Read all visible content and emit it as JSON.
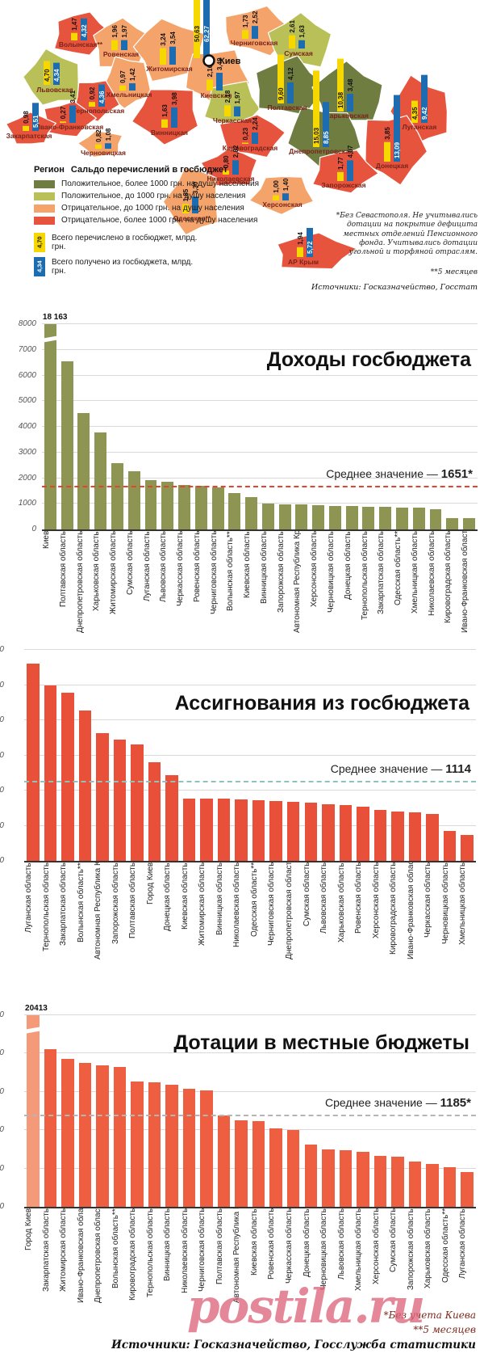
{
  "map": {
    "legend": {
      "title_region": "Регион",
      "title": "Сальдо перечислений в госбюджет",
      "items": [
        {
          "color": "#6f7d41",
          "label": "Положительное, более 1000 грн. на душу населения"
        },
        {
          "color": "#b9c058",
          "label": "Положительное, до 1000 грн. на душу населения"
        },
        {
          "color": "#f4a46b",
          "label": "Отрицательное, до 1000 грн. на душу населения"
        },
        {
          "color": "#e7543e",
          "label": "Отрицательное, более 1000 грн. на душу населения"
        }
      ],
      "bar_items": [
        {
          "color": "#f6d800",
          "text_color": "#111111",
          "value": "4,70",
          "label": "Всего перечислено в госбюджет, млрд. грн."
        },
        {
          "color": "#1d6cb0",
          "text_color": "#ffffff",
          "value": "4,34",
          "label": "Всего получено из госбюджета, млрд. грн."
        }
      ]
    },
    "category_colors": {
      "pos_high": "#6f7d41",
      "pos_low": "#b9c058",
      "neg_low": "#f4a46b",
      "neg_high": "#e7543e"
    },
    "bar_colors": {
      "sent": "#f6d800",
      "received": "#1d6cb0"
    },
    "kyiv_label": "Киев",
    "footnote": "*Без Севастополя. Не учитывались дотации на покрытие дефицита местных отделений Пенсионного фонда. Учитывались дотации угольной и торфяной отраслям.",
    "footnote2": "**5 месяцев",
    "source": "Источники: Госказначейство, Госстат",
    "regions": [
      {
        "name": "Волынская**",
        "category": "neg_high",
        "sent": "1,47",
        "received": "4,32"
      },
      {
        "name": "Ровенская",
        "category": "neg_low",
        "sent": "1,96",
        "received": "1,97"
      },
      {
        "name": "Житомирская",
        "category": "neg_low",
        "sent": "3,24",
        "received": "3,54"
      },
      {
        "name": "Киев",
        "category": "kyiv",
        "sent": "50,63",
        "received": "62,27"
      },
      {
        "name": "Киевская",
        "category": "neg_low",
        "sent": "2,16",
        "received": "3,49"
      },
      {
        "name": "Черниговская",
        "category": "neg_low",
        "sent": "1,73",
        "received": "2,52"
      },
      {
        "name": "Сумская",
        "category": "pos_low",
        "sent": "2,61",
        "received": "1,63"
      },
      {
        "name": "Львовская",
        "category": "pos_low",
        "sent": "4,70",
        "received": "4,34"
      },
      {
        "name": "Хмельницкая",
        "category": "neg_low",
        "sent": "0,97",
        "received": "1,42"
      },
      {
        "name": "Тернопольская",
        "category": "neg_high",
        "sent": "0,92",
        "received": "4,36"
      },
      {
        "name": "Ивано-Франковская",
        "category": "neg_high",
        "sent": "0,27",
        "received": "3,41"
      },
      {
        "name": "Закарпатская",
        "category": "neg_high",
        "sent": "0,98",
        "received": "5,51"
      },
      {
        "name": "Черновицкая",
        "category": "neg_low",
        "sent": "0,82",
        "received": "1,08"
      },
      {
        "name": "Винницкая",
        "category": "neg_high",
        "sent": "1,63",
        "received": "3,98"
      },
      {
        "name": "Черкасская",
        "category": "pos_low",
        "sent": "2,18",
        "received": "1,97"
      },
      {
        "name": "Полтавская",
        "category": "pos_high",
        "sent": "9,60",
        "received": "4,12"
      },
      {
        "name": "Харьковская",
        "category": "pos_high",
        "sent": "10,38",
        "received": "3,48"
      },
      {
        "name": "Луганская",
        "category": "neg_high",
        "sent": "4,35",
        "received": "9,42"
      },
      {
        "name": "Днепропетровская",
        "category": "pos_high",
        "sent": "15,03",
        "received": "8,85"
      },
      {
        "name": "Донецкая",
        "category": "neg_high",
        "sent": "3,85",
        "received": "13,09"
      },
      {
        "name": "Кировоградская",
        "category": "neg_high",
        "sent": "0,23",
        "received": "2,24"
      },
      {
        "name": "Николаевская",
        "category": "neg_high",
        "sent": "0,80",
        "received": "2,82"
      },
      {
        "name": "Одесская**",
        "category": "neg_low",
        "sent": "1,85",
        "received": "3,30"
      },
      {
        "name": "Херсонская",
        "category": "neg_low",
        "sent": "1,00",
        "received": "1,40"
      },
      {
        "name": "Запорожская",
        "category": "neg_high",
        "sent": "1,77",
        "received": "4,07"
      },
      {
        "name": "АР Крым",
        "category": "neg_high",
        "sent": "1,94",
        "received": "5,72"
      }
    ]
  },
  "chart_data": [
    {
      "type": "bar",
      "title": "Доходы госбюджета",
      "bar_color": "#8e9552",
      "avg_line_color": "#e0452f",
      "grid": true,
      "legend_position": "none",
      "yaxis": "visible",
      "ylim": [
        0,
        8000
      ],
      "ytick": 1000,
      "average": {
        "value": 1651,
        "prefix": "Среднее значение — ",
        "display": "1651*"
      },
      "clip_label": "18 163",
      "categories": [
        "Киев",
        "Полтавская область",
        "Днепропетровская область",
        "Харьковская область",
        "Житомирская область",
        "Сумская область",
        "Луганская область",
        "Львовская область",
        "Черкасская область",
        "Ровенская область",
        "Черниговская область",
        "Волынская область**",
        "Киевская область",
        "Винницкая область",
        "Запорожская область",
        "Автономная Республика Крым",
        "Херсонская область",
        "Черновицкая область",
        "Донецкая область",
        "Тернопольская область",
        "Закарпатская область",
        "Одесская область**",
        "Хмельницкая область",
        "Николаевская область",
        "Кировоградская область",
        "Ивано-Франковская область"
      ],
      "values": [
        18163,
        6550,
        4550,
        3780,
        2570,
        2280,
        1930,
        1850,
        1730,
        1690,
        1640,
        1420,
        1250,
        1000,
        990,
        980,
        940,
        920,
        910,
        890,
        870,
        860,
        840,
        800,
        450,
        430
      ]
    },
    {
      "type": "bar",
      "title": "Ассигнования из госбюджета",
      "bar_color": "#e8503a",
      "avg_line_color": "#8fc2bb",
      "grid": true,
      "legend_position": "none",
      "yaxis": "cut",
      "ylim": [
        0,
        3000
      ],
      "ytick": 500,
      "average": {
        "value": 1114,
        "prefix": "Среднее значение — ",
        "display": "1114"
      },
      "categories": [
        "Луганская область",
        "Тернопольская область",
        "Закарпатская область",
        "Волынская область**",
        "Автономная Республика Крым",
        "Запорожская область",
        "Полтавская область",
        "Город Киев",
        "Донецкая область",
        "Киевская область",
        "Житомирская область",
        "Винницкая область",
        "Николаевская область",
        "Одесская область**",
        "Черниговская область",
        "Днепропетровская область",
        "Сумская область",
        "Львовская область",
        "Харьковская область",
        "Ровенская область",
        "Херсонская область",
        "Кировоградская область",
        "Ивано-Франковская область",
        "Черкасская область",
        "Черновицкая область",
        "Хмельницкая область"
      ],
      "values": [
        2800,
        2500,
        2390,
        2140,
        1820,
        1730,
        1660,
        1400,
        1220,
        890,
        885,
        880,
        875,
        865,
        855,
        845,
        825,
        805,
        790,
        770,
        725,
        700,
        685,
        665,
        430,
        370
      ]
    },
    {
      "type": "bar",
      "title": "Дотации в местные бюджеты",
      "bar_color": "#ee5e40",
      "first_bar_color": "#f59a78",
      "avg_line_color": "#b5b5b5",
      "grid": true,
      "legend_position": "none",
      "yaxis": "cut",
      "ylim": [
        0,
        2500
      ],
      "ytick": 500,
      "average": {
        "value": 1185,
        "prefix": "Среднее значение — ",
        "display": "1185*"
      },
      "clip_label": "20413",
      "categories": [
        "Город Киев",
        "Закарпатская область",
        "Житомирская область",
        "Ивано-Франковская область",
        "Днепропетровская область",
        "Волынская область**",
        "Кировоградская область",
        "Тернопольская область",
        "Винницкая область",
        "Николаевская область",
        "Черниговская область",
        "Полтавская область",
        "Автономная Республика Крым",
        "Киевская область",
        "Ровенская область",
        "Черкасская область",
        "Донецкая область",
        "Черновицкая область",
        "Львовская область",
        "Хмельницкая область",
        "Херсонская область",
        "Сумская область",
        "Запорожская область",
        "Харьковская область",
        "Одесская область**",
        "Луганская область"
      ],
      "values": [
        20413,
        2060,
        1930,
        1875,
        1845,
        1820,
        1640,
        1620,
        1590,
        1545,
        1520,
        1190,
        1125,
        1115,
        1020,
        1000,
        810,
        745,
        735,
        715,
        665,
        650,
        590,
        555,
        520,
        455
      ]
    }
  ],
  "footer": {
    "note1": "*Без учета Киева",
    "note2": "**5 месяцев",
    "source": "Источники: Госказначейство, Госслужба статистики",
    "watermark": "postila.ru"
  }
}
